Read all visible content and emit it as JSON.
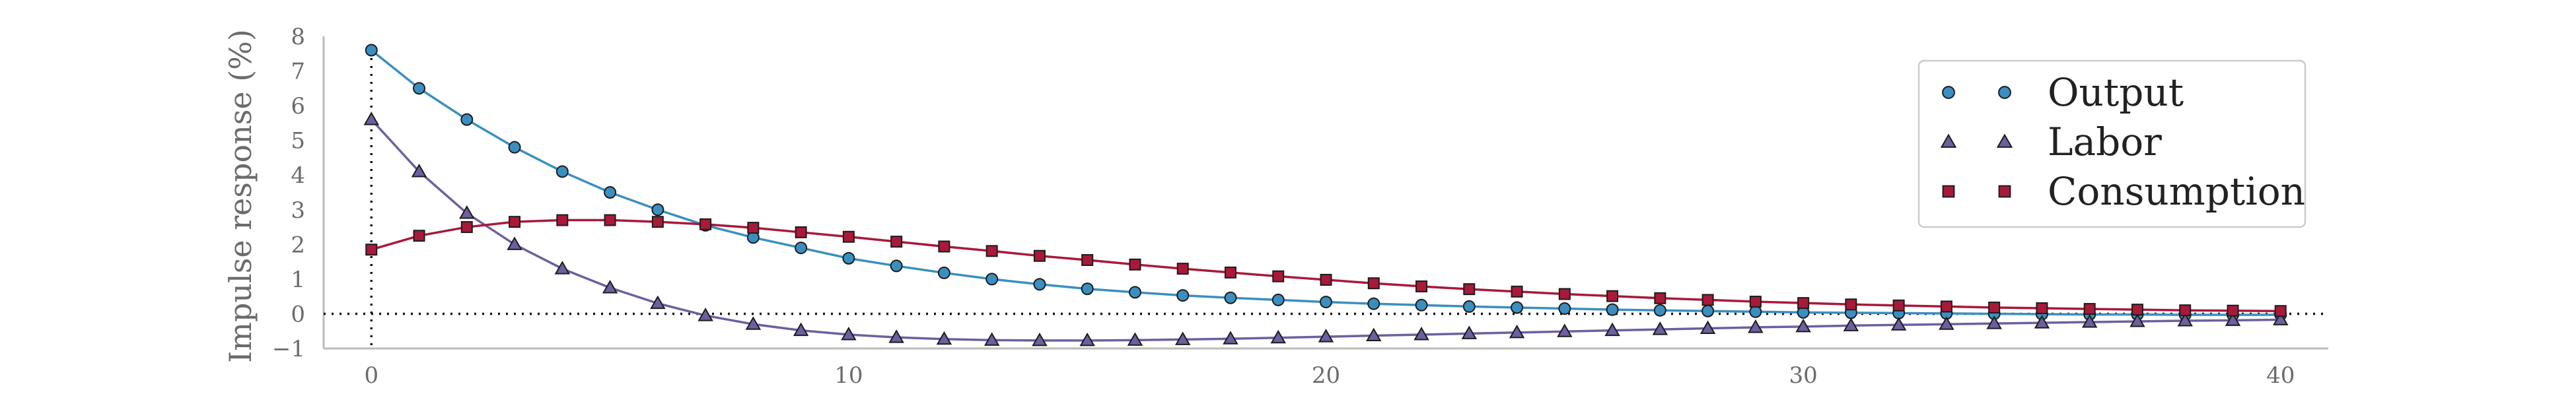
{
  "chart_data": {
    "type": "line",
    "title": "",
    "xlabel": "",
    "ylabel": "Impulse response (%)",
    "xlim": [
      -1,
      41
    ],
    "ylim": [
      -1,
      8
    ],
    "xticks": [
      0,
      10,
      20,
      30,
      40
    ],
    "yticks": [
      -1,
      0,
      1,
      2,
      3,
      4,
      5,
      6,
      7,
      8
    ],
    "grid": false,
    "legend_position": "top-right",
    "reference_lines": {
      "horizontal_y": 0,
      "vertical_x": 0,
      "style": "dotted"
    },
    "x": [
      0,
      1,
      2,
      3,
      4,
      5,
      6,
      7,
      8,
      9,
      10,
      11,
      12,
      13,
      14,
      15,
      16,
      17,
      18,
      19,
      20,
      21,
      22,
      23,
      24,
      25,
      26,
      27,
      28,
      29,
      30,
      31,
      32,
      33,
      34,
      35,
      36,
      37,
      38,
      39,
      40
    ],
    "series": [
      {
        "name": "Output",
        "marker": "circle",
        "color": "#3a8fc0",
        "values": [
          7.6,
          6.5,
          5.6,
          4.8,
          4.1,
          3.5,
          3.0,
          2.55,
          2.2,
          1.9,
          1.6,
          1.38,
          1.18,
          1.0,
          0.85,
          0.72,
          0.62,
          0.53,
          0.46,
          0.4,
          0.34,
          0.29,
          0.25,
          0.21,
          0.18,
          0.15,
          0.12,
          0.1,
          0.08,
          0.06,
          0.04,
          0.03,
          0.02,
          0.01,
          0.0,
          -0.01,
          -0.02,
          -0.02,
          -0.03,
          -0.03,
          -0.03
        ]
      },
      {
        "name": "Labor",
        "marker": "triangle",
        "color": "#6e5fa0",
        "values": [
          5.6,
          4.1,
          2.9,
          2.0,
          1.3,
          0.75,
          0.3,
          -0.05,
          -0.3,
          -0.48,
          -0.6,
          -0.68,
          -0.73,
          -0.76,
          -0.77,
          -0.77,
          -0.76,
          -0.74,
          -0.72,
          -0.69,
          -0.66,
          -0.63,
          -0.6,
          -0.57,
          -0.54,
          -0.51,
          -0.48,
          -0.45,
          -0.42,
          -0.39,
          -0.37,
          -0.34,
          -0.32,
          -0.3,
          -0.28,
          -0.26,
          -0.24,
          -0.22,
          -0.2,
          -0.19,
          -0.17
        ]
      },
      {
        "name": "Consumption",
        "marker": "square",
        "color": "#a8193a",
        "values": [
          1.85,
          2.25,
          2.5,
          2.65,
          2.7,
          2.7,
          2.65,
          2.58,
          2.48,
          2.35,
          2.22,
          2.08,
          1.94,
          1.81,
          1.67,
          1.55,
          1.42,
          1.3,
          1.19,
          1.08,
          0.98,
          0.88,
          0.79,
          0.71,
          0.64,
          0.57,
          0.51,
          0.45,
          0.4,
          0.35,
          0.31,
          0.27,
          0.24,
          0.21,
          0.18,
          0.16,
          0.14,
          0.12,
          0.1,
          0.09,
          0.08
        ]
      }
    ]
  }
}
